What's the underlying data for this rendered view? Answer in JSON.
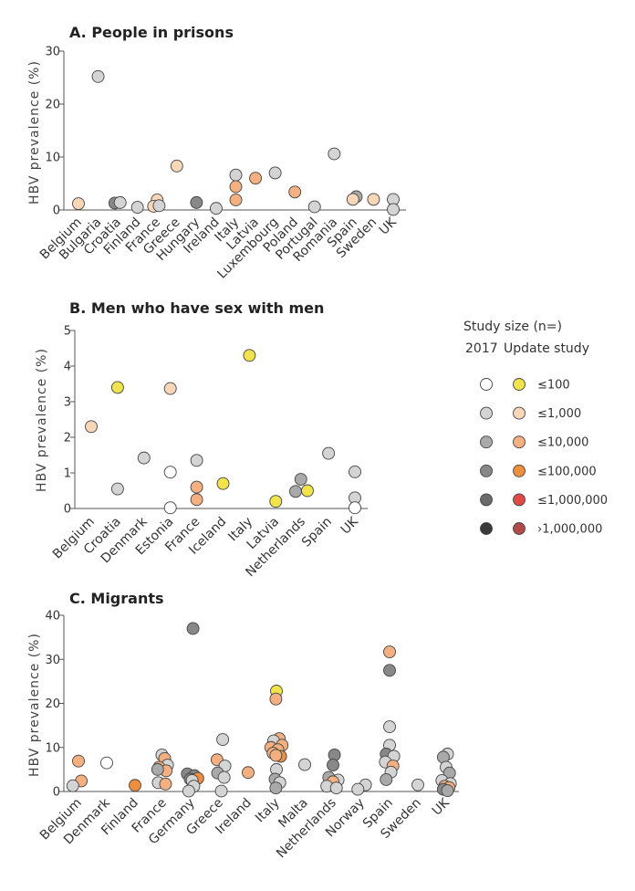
{
  "palette": {
    "old": [
      "#ffffff",
      "#d4d4d4",
      "#a9a9a9",
      "#888888",
      "#6a6a6a",
      "#3a3a3a"
    ],
    "new": [
      "#f1e34a",
      "#f8d6b8",
      "#f4b080",
      "#ee8e3f",
      "#e34848",
      "#b34848"
    ]
  },
  "legend": {
    "title": "Study size (n=)",
    "subtitle_left": "2017",
    "subtitle_right": "Update study",
    "items": [
      {
        "label": "≤100",
        "size_class": 0
      },
      {
        "label": "≤1,000",
        "size_class": 1
      },
      {
        "label": "≤10,000",
        "size_class": 2
      },
      {
        "label": "≤100,000",
        "size_class": 3
      },
      {
        "label": "≤1,000,000",
        "size_class": 4
      },
      {
        "label": "›1,000,000",
        "size_class": 5
      }
    ]
  },
  "chart_data": [
    {
      "type": "scatter",
      "title": "A. People in prisons",
      "xlabel": "",
      "ylabel": "HBV prevalence (%)",
      "ylim": [
        0,
        30
      ],
      "yticks": [
        0,
        10,
        20,
        30
      ],
      "categories": [
        "Belgium",
        "Bulgaria",
        "Croatia",
        "Finland",
        "France",
        "Greece",
        "Hungary",
        "Ireland",
        "Italy",
        "Latvia",
        "Luxembourg",
        "Poland",
        "Portugal",
        "Romania",
        "Spain",
        "Sweden",
        "UK"
      ],
      "points": [
        {
          "c": 0,
          "v": 1.2,
          "s": 1,
          "u": 1,
          "o": 0
        },
        {
          "c": 1,
          "v": 25.2,
          "s": 1,
          "u": 0,
          "o": 0
        },
        {
          "c": 2,
          "v": 1.3,
          "s": 3,
          "u": 0,
          "o": -0.15
        },
        {
          "c": 2,
          "v": 1.4,
          "s": 1,
          "u": 0,
          "o": 0.12
        },
        {
          "c": 3,
          "v": 0.5,
          "s": 1,
          "u": 0,
          "o": 0
        },
        {
          "c": 4,
          "v": 1.9,
          "s": 1,
          "u": 1,
          "o": 0
        },
        {
          "c": 4,
          "v": 0.7,
          "s": 1,
          "u": 1,
          "o": -0.18
        },
        {
          "c": 4,
          "v": 0.8,
          "s": 1,
          "u": 0,
          "o": 0.1
        },
        {
          "c": 5,
          "v": 8.3,
          "s": 1,
          "u": 1,
          "o": 0
        },
        {
          "c": 6,
          "v": 1.4,
          "s": 3,
          "u": 0,
          "o": 0
        },
        {
          "c": 7,
          "v": 0.3,
          "s": 1,
          "u": 0,
          "o": 0
        },
        {
          "c": 8,
          "v": 6.6,
          "s": 1,
          "u": 0,
          "o": 0
        },
        {
          "c": 8,
          "v": 4.4,
          "s": 2,
          "u": 1,
          "o": 0
        },
        {
          "c": 8,
          "v": 1.9,
          "s": 2,
          "u": 1,
          "o": 0
        },
        {
          "c": 9,
          "v": 6.0,
          "s": 2,
          "u": 1,
          "o": 0
        },
        {
          "c": 10,
          "v": 7.0,
          "s": 1,
          "u": 0,
          "o": 0
        },
        {
          "c": 11,
          "v": 3.4,
          "s": 2,
          "u": 1,
          "o": 0
        },
        {
          "c": 12,
          "v": 0.6,
          "s": 1,
          "u": 0,
          "o": 0
        },
        {
          "c": 13,
          "v": 10.6,
          "s": 1,
          "u": 0,
          "o": 0
        },
        {
          "c": 14,
          "v": 2.5,
          "s": 2,
          "u": 0,
          "o": 0.12
        },
        {
          "c": 14,
          "v": 2.0,
          "s": 1,
          "u": 1,
          "o": -0.05
        },
        {
          "c": 15,
          "v": 2.0,
          "s": 1,
          "u": 1,
          "o": 0
        },
        {
          "c": 16,
          "v": 2.0,
          "s": 1,
          "u": 0,
          "o": 0
        },
        {
          "c": 16,
          "v": 0.1,
          "s": 1,
          "u": 0,
          "o": 0
        }
      ]
    },
    {
      "type": "scatter",
      "title": "B. Men who have sex with men",
      "xlabel": "",
      "ylabel": "HBV prevalence (%)",
      "ylim": [
        0,
        5
      ],
      "yticks": [
        0,
        1,
        2,
        3,
        4,
        5
      ],
      "categories": [
        "Belgium",
        "Croatia",
        "Denmark",
        "Estonia",
        "France",
        "Iceland",
        "Italy",
        "Latvia",
        "Netherlands",
        "Spain",
        "UK"
      ],
      "points": [
        {
          "c": 0,
          "v": 2.3,
          "s": 1,
          "u": 1,
          "o": 0
        },
        {
          "c": 1,
          "v": 3.4,
          "s": 0,
          "u": 1,
          "o": 0
        },
        {
          "c": 1,
          "v": 0.55,
          "s": 1,
          "u": 0,
          "o": 0
        },
        {
          "c": 2,
          "v": 1.42,
          "s": 1,
          "u": 0,
          "o": 0
        },
        {
          "c": 3,
          "v": 3.37,
          "s": 1,
          "u": 1,
          "o": 0
        },
        {
          "c": 3,
          "v": 1.02,
          "s": 0,
          "u": 0,
          "o": 0
        },
        {
          "c": 3,
          "v": 0.02,
          "s": 0,
          "u": 0,
          "o": 0
        },
        {
          "c": 4,
          "v": 1.35,
          "s": 1,
          "u": 0,
          "o": 0
        },
        {
          "c": 4,
          "v": 0.6,
          "s": 2,
          "u": 1,
          "o": 0
        },
        {
          "c": 4,
          "v": 0.25,
          "s": 2,
          "u": 1,
          "o": 0
        },
        {
          "c": 5,
          "v": 0.7,
          "s": 0,
          "u": 1,
          "o": 0
        },
        {
          "c": 6,
          "v": 4.3,
          "s": 0,
          "u": 1,
          "o": 0
        },
        {
          "c": 7,
          "v": 0.2,
          "s": 0,
          "u": 1,
          "o": 0
        },
        {
          "c": 8,
          "v": 0.82,
          "s": 2,
          "u": 0,
          "o": -0.05
        },
        {
          "c": 8,
          "v": 0.48,
          "s": 2,
          "u": 0,
          "o": -0.25
        },
        {
          "c": 8,
          "v": 0.5,
          "s": 0,
          "u": 1,
          "o": 0.2
        },
        {
          "c": 9,
          "v": 1.55,
          "s": 1,
          "u": 0,
          "o": 0
        },
        {
          "c": 10,
          "v": 1.03,
          "s": 1,
          "u": 0,
          "o": 0
        },
        {
          "c": 10,
          "v": 0.3,
          "s": 1,
          "u": 0,
          "o": 0
        },
        {
          "c": 10,
          "v": 0.02,
          "s": 0,
          "u": 0,
          "o": 0
        }
      ]
    },
    {
      "type": "scatter",
      "title": "C. Migrants",
      "xlabel": "",
      "ylabel": "HBV prevalence (%)",
      "ylim": [
        0,
        40
      ],
      "yticks": [
        0,
        10,
        20,
        30,
        40
      ],
      "categories": [
        "Belgium",
        "Denmark",
        "Finland",
        "France",
        "Germany",
        "Greece",
        "Ireland",
        "Italy",
        "Malta",
        "Netherlands",
        "Norway",
        "Spain",
        "Sweden",
        "UK"
      ],
      "points": [
        {
          "c": 0,
          "v": 6.9,
          "s": 2,
          "u": 1,
          "o": 0
        },
        {
          "c": 0,
          "v": 2.4,
          "s": 2,
          "u": 1,
          "o": 0.1
        },
        {
          "c": 0,
          "v": 1.3,
          "s": 1,
          "u": 0,
          "o": -0.2
        },
        {
          "c": 1,
          "v": 6.5,
          "s": 0,
          "u": 0,
          "o": 0
        },
        {
          "c": 2,
          "v": 1.4,
          "s": 3,
          "u": 1,
          "o": 0
        },
        {
          "c": 3,
          "v": 8.3,
          "s": 1,
          "u": 0,
          "o": -0.05
        },
        {
          "c": 3,
          "v": 7.5,
          "s": 2,
          "u": 1,
          "o": 0.05
        },
        {
          "c": 3,
          "v": 6.0,
          "s": 1,
          "u": 0,
          "o": 0.15
        },
        {
          "c": 3,
          "v": 5.5,
          "s": 2,
          "u": 1,
          "o": -0.15
        },
        {
          "c": 3,
          "v": 4.7,
          "s": 2,
          "u": 1,
          "o": 0.1
        },
        {
          "c": 3,
          "v": 5.0,
          "s": 2,
          "u": 0,
          "o": -0.2
        },
        {
          "c": 3,
          "v": 2.0,
          "s": 1,
          "u": 0,
          "o": -0.18
        },
        {
          "c": 3,
          "v": 1.7,
          "s": 2,
          "u": 1,
          "o": 0.08
        },
        {
          "c": 4,
          "v": 37.0,
          "s": 3,
          "u": 0,
          "o": 0.05
        },
        {
          "c": 4,
          "v": 4.0,
          "s": 3,
          "u": 0,
          "o": -0.15
        },
        {
          "c": 4,
          "v": 3.6,
          "s": 3,
          "u": 0,
          "o": 0.1
        },
        {
          "c": 4,
          "v": 3.0,
          "s": 3,
          "u": 1,
          "o": 0.22
        },
        {
          "c": 4,
          "v": 2.8,
          "s": 3,
          "u": 0,
          "o": -0.05
        },
        {
          "c": 4,
          "v": 2.5,
          "s": 1,
          "u": 0,
          "o": 0.02
        },
        {
          "c": 4,
          "v": 1.2,
          "s": 1,
          "u": 0,
          "o": 0.08
        },
        {
          "c": 4,
          "v": 0.1,
          "s": 1,
          "u": 0,
          "o": -0.1
        },
        {
          "c": 5,
          "v": 11.8,
          "s": 1,
          "u": 0,
          "o": 0.1
        },
        {
          "c": 5,
          "v": 7.2,
          "s": 2,
          "u": 1,
          "o": -0.1
        },
        {
          "c": 5,
          "v": 5.8,
          "s": 1,
          "u": 0,
          "o": 0.18
        },
        {
          "c": 5,
          "v": 4.2,
          "s": 2,
          "u": 0,
          "o": -0.08
        },
        {
          "c": 5,
          "v": 3.2,
          "s": 1,
          "u": 0,
          "o": 0.15
        },
        {
          "c": 5,
          "v": 0.1,
          "s": 1,
          "u": 0,
          "o": 0.05
        },
        {
          "c": 6,
          "v": 4.3,
          "s": 2,
          "u": 1,
          "o": 0
        },
        {
          "c": 7,
          "v": 22.8,
          "s": 0,
          "u": 1,
          "o": 0
        },
        {
          "c": 7,
          "v": 21.0,
          "s": 2,
          "u": 1,
          "o": -0.02
        },
        {
          "c": 7,
          "v": 12.0,
          "s": 2,
          "u": 1,
          "o": 0.1
        },
        {
          "c": 7,
          "v": 11.5,
          "s": 1,
          "u": 0,
          "o": -0.1
        },
        {
          "c": 7,
          "v": 10.5,
          "s": 2,
          "u": 1,
          "o": 0.2
        },
        {
          "c": 7,
          "v": 10.0,
          "s": 2,
          "u": 1,
          "o": -0.2
        },
        {
          "c": 7,
          "v": 9.5,
          "s": 2,
          "u": 1,
          "o": 0.05
        },
        {
          "c": 7,
          "v": 8.7,
          "s": 2,
          "u": 1,
          "o": -0.12
        },
        {
          "c": 7,
          "v": 8.0,
          "s": 3,
          "u": 1,
          "o": 0.15
        },
        {
          "c": 7,
          "v": 8.2,
          "s": 2,
          "u": 1,
          "o": -0.02
        },
        {
          "c": 7,
          "v": 5.0,
          "s": 1,
          "u": 0,
          "o": 0
        },
        {
          "c": 7,
          "v": 2.8,
          "s": 2,
          "u": 0,
          "o": -0.05
        },
        {
          "c": 7,
          "v": 2.0,
          "s": 1,
          "u": 0,
          "o": 0.12
        },
        {
          "c": 7,
          "v": 0.8,
          "s": 2,
          "u": 0,
          "o": -0.02
        },
        {
          "c": 8,
          "v": 6.1,
          "s": 1,
          "u": 0,
          "o": 0
        },
        {
          "c": 9,
          "v": 8.3,
          "s": 3,
          "u": 0,
          "o": 0.05
        },
        {
          "c": 9,
          "v": 6.0,
          "s": 3,
          "u": 0,
          "o": 0.0
        },
        {
          "c": 9,
          "v": 3.2,
          "s": 2,
          "u": 0,
          "o": -0.15
        },
        {
          "c": 9,
          "v": 2.6,
          "s": 1,
          "u": 0,
          "o": 0.18
        },
        {
          "c": 9,
          "v": 2.2,
          "s": 2,
          "u": 1,
          "o": 0.0
        },
        {
          "c": 9,
          "v": 1.2,
          "s": 1,
          "u": 0,
          "o": -0.22
        },
        {
          "c": 9,
          "v": 0.8,
          "s": 1,
          "u": 0,
          "o": 0.12
        },
        {
          "c": 10,
          "v": 1.5,
          "s": 1,
          "u": 0,
          "o": 0.15
        },
        {
          "c": 10,
          "v": 0.5,
          "s": 1,
          "u": 0,
          "o": -0.12
        },
        {
          "c": 11,
          "v": 31.7,
          "s": 2,
          "u": 1,
          "o": 0
        },
        {
          "c": 11,
          "v": 27.5,
          "s": 3,
          "u": 0,
          "o": 0
        },
        {
          "c": 11,
          "v": 14.7,
          "s": 1,
          "u": 0,
          "o": 0
        },
        {
          "c": 11,
          "v": 10.5,
          "s": 1,
          "u": 0,
          "o": 0
        },
        {
          "c": 11,
          "v": 8.5,
          "s": 3,
          "u": 0,
          "o": -0.12
        },
        {
          "c": 11,
          "v": 8.0,
          "s": 1,
          "u": 0,
          "o": 0.15
        },
        {
          "c": 11,
          "v": 6.7,
          "s": 1,
          "u": 0,
          "o": -0.15
        },
        {
          "c": 11,
          "v": 5.8,
          "s": 2,
          "u": 1,
          "o": 0.12
        },
        {
          "c": 11,
          "v": 4.4,
          "s": 1,
          "u": 0,
          "o": 0.05
        },
        {
          "c": 11,
          "v": 2.7,
          "s": 2,
          "u": 0,
          "o": -0.12
        },
        {
          "c": 12,
          "v": 1.5,
          "s": 1,
          "u": 0,
          "o": 0
        },
        {
          "c": 13,
          "v": 8.5,
          "s": 1,
          "u": 0,
          "o": 0.05
        },
        {
          "c": 13,
          "v": 7.8,
          "s": 2,
          "u": 0,
          "o": -0.1
        },
        {
          "c": 13,
          "v": 5.5,
          "s": 1,
          "u": 0,
          "o": 0.0
        },
        {
          "c": 13,
          "v": 4.2,
          "s": 2,
          "u": 0,
          "o": 0.12
        },
        {
          "c": 13,
          "v": 2.5,
          "s": 1,
          "u": 0,
          "o": -0.15
        },
        {
          "c": 13,
          "v": 1.8,
          "s": 1,
          "u": 0,
          "o": 0.15
        },
        {
          "c": 13,
          "v": 1.2,
          "s": 2,
          "u": 1,
          "o": -0.05
        },
        {
          "c": 13,
          "v": 0.9,
          "s": 2,
          "u": 1,
          "o": 0.1
        },
        {
          "c": 13,
          "v": 0.5,
          "s": 3,
          "u": 0,
          "o": -0.1
        },
        {
          "c": 13,
          "v": 0.2,
          "s": 2,
          "u": 0,
          "o": 0.05
        }
      ]
    }
  ]
}
